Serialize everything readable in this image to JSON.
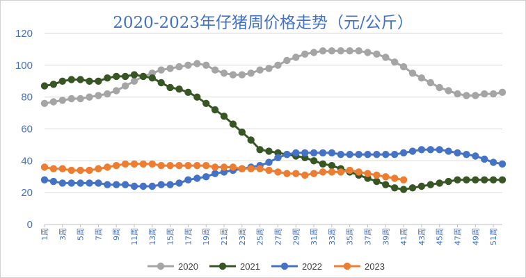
{
  "chart_data": {
    "type": "line",
    "title": "2020-2023年仔猪周价格走势（元/公斤）",
    "xlabel": "",
    "ylabel": "",
    "ylim": [
      0,
      120
    ],
    "yticks": [
      0,
      20,
      40,
      60,
      80,
      100,
      120
    ],
    "grid": true,
    "legend_position": "bottom",
    "x_tick_labels": [
      "1周",
      "3周",
      "5周",
      "7周",
      "9周",
      "11周",
      "13周",
      "15周",
      "17周",
      "19周",
      "21周",
      "23周",
      "25周",
      "27周",
      "29周",
      "31周",
      "33周",
      "35周",
      "37周",
      "39周",
      "41周",
      "43周",
      "45周",
      "47周",
      "49周",
      "51周"
    ],
    "x_tick_weeks": [
      1,
      3,
      5,
      7,
      9,
      11,
      13,
      15,
      17,
      19,
      21,
      23,
      25,
      27,
      29,
      31,
      33,
      35,
      37,
      39,
      41,
      43,
      45,
      47,
      49,
      51
    ],
    "x_range": [
      1,
      52
    ],
    "series": [
      {
        "name": "2020",
        "color": "#a5a5a5",
        "x": [
          1,
          2,
          3,
          4,
          5,
          6,
          7,
          8,
          9,
          10,
          11,
          12,
          13,
          14,
          15,
          16,
          17,
          18,
          19,
          20,
          21,
          22,
          23,
          24,
          25,
          26,
          27,
          28,
          29,
          30,
          31,
          32,
          33,
          34,
          35,
          36,
          37,
          38,
          39,
          40,
          41,
          42,
          43,
          44,
          45,
          46,
          47,
          48,
          49,
          50,
          51,
          52
        ],
        "values": [
          76,
          77,
          78,
          79,
          79,
          80,
          81,
          82,
          84,
          87,
          90,
          93,
          95,
          97,
          98,
          99,
          100,
          101,
          100,
          97,
          95,
          94,
          94,
          95,
          97,
          98,
          100,
          103,
          105,
          107,
          108,
          109,
          109,
          109,
          109,
          109,
          108,
          107,
          105,
          102,
          99,
          95,
          92,
          89,
          86,
          84,
          82,
          81,
          81,
          82,
          82,
          83
        ]
      },
      {
        "name": "2021",
        "color": "#375623",
        "x": [
          1,
          2,
          3,
          4,
          5,
          6,
          7,
          8,
          9,
          10,
          11,
          12,
          13,
          14,
          15,
          16,
          17,
          18,
          19,
          20,
          21,
          22,
          23,
          24,
          25,
          26,
          27,
          28,
          29,
          30,
          31,
          32,
          33,
          34,
          35,
          36,
          37,
          38,
          39,
          40,
          41,
          42,
          43,
          44,
          45,
          46,
          47,
          48,
          49,
          50,
          51,
          52
        ],
        "values": [
          87,
          88,
          90,
          91,
          91,
          90,
          90,
          92,
          93,
          93,
          94,
          93,
          92,
          89,
          86,
          85,
          83,
          80,
          76,
          72,
          68,
          63,
          58,
          53,
          47,
          46,
          45,
          44,
          43,
          42,
          40,
          38,
          37,
          35,
          33,
          31,
          29,
          27,
          25,
          23,
          22,
          23,
          24,
          25,
          26,
          27,
          28,
          28,
          28,
          28,
          28,
          28
        ]
      },
      {
        "name": "2022",
        "color": "#4472c4",
        "x": [
          1,
          2,
          3,
          4,
          5,
          6,
          7,
          8,
          9,
          10,
          11,
          12,
          13,
          14,
          15,
          16,
          17,
          18,
          19,
          20,
          21,
          22,
          23,
          24,
          25,
          26,
          27,
          28,
          29,
          30,
          31,
          32,
          33,
          34,
          35,
          36,
          37,
          38,
          39,
          40,
          41,
          42,
          43,
          44,
          45,
          46,
          47,
          48,
          49,
          50,
          51,
          52
        ],
        "values": [
          28,
          27,
          26,
          26,
          26,
          26,
          26,
          25,
          25,
          25,
          24,
          24,
          24,
          25,
          25,
          26,
          28,
          29,
          30,
          32,
          33,
          34,
          35,
          36,
          37,
          39,
          42,
          44,
          45,
          45,
          45,
          45,
          45,
          44,
          44,
          44,
          44,
          44,
          44,
          44,
          45,
          46,
          47,
          47,
          47,
          46,
          45,
          44,
          43,
          41,
          39,
          38
        ]
      },
      {
        "name": "2023",
        "color": "#ed7d31",
        "x": [
          1,
          2,
          3,
          4,
          5,
          6,
          7,
          8,
          9,
          10,
          11,
          12,
          13,
          14,
          15,
          16,
          17,
          18,
          19,
          20,
          21,
          22,
          23,
          24,
          25,
          26,
          27,
          28,
          29,
          30,
          31,
          32,
          33,
          34,
          35,
          36,
          37,
          38,
          39,
          40,
          41
        ],
        "values": [
          36,
          35,
          35,
          34,
          34,
          34,
          35,
          36,
          37,
          38,
          38,
          38,
          38,
          37,
          37,
          37,
          37,
          37,
          37,
          36,
          36,
          36,
          35,
          35,
          35,
          34,
          33,
          32,
          32,
          31,
          32,
          33,
          33,
          33,
          34,
          33,
          32,
          31,
          30,
          29,
          28
        ]
      }
    ]
  }
}
